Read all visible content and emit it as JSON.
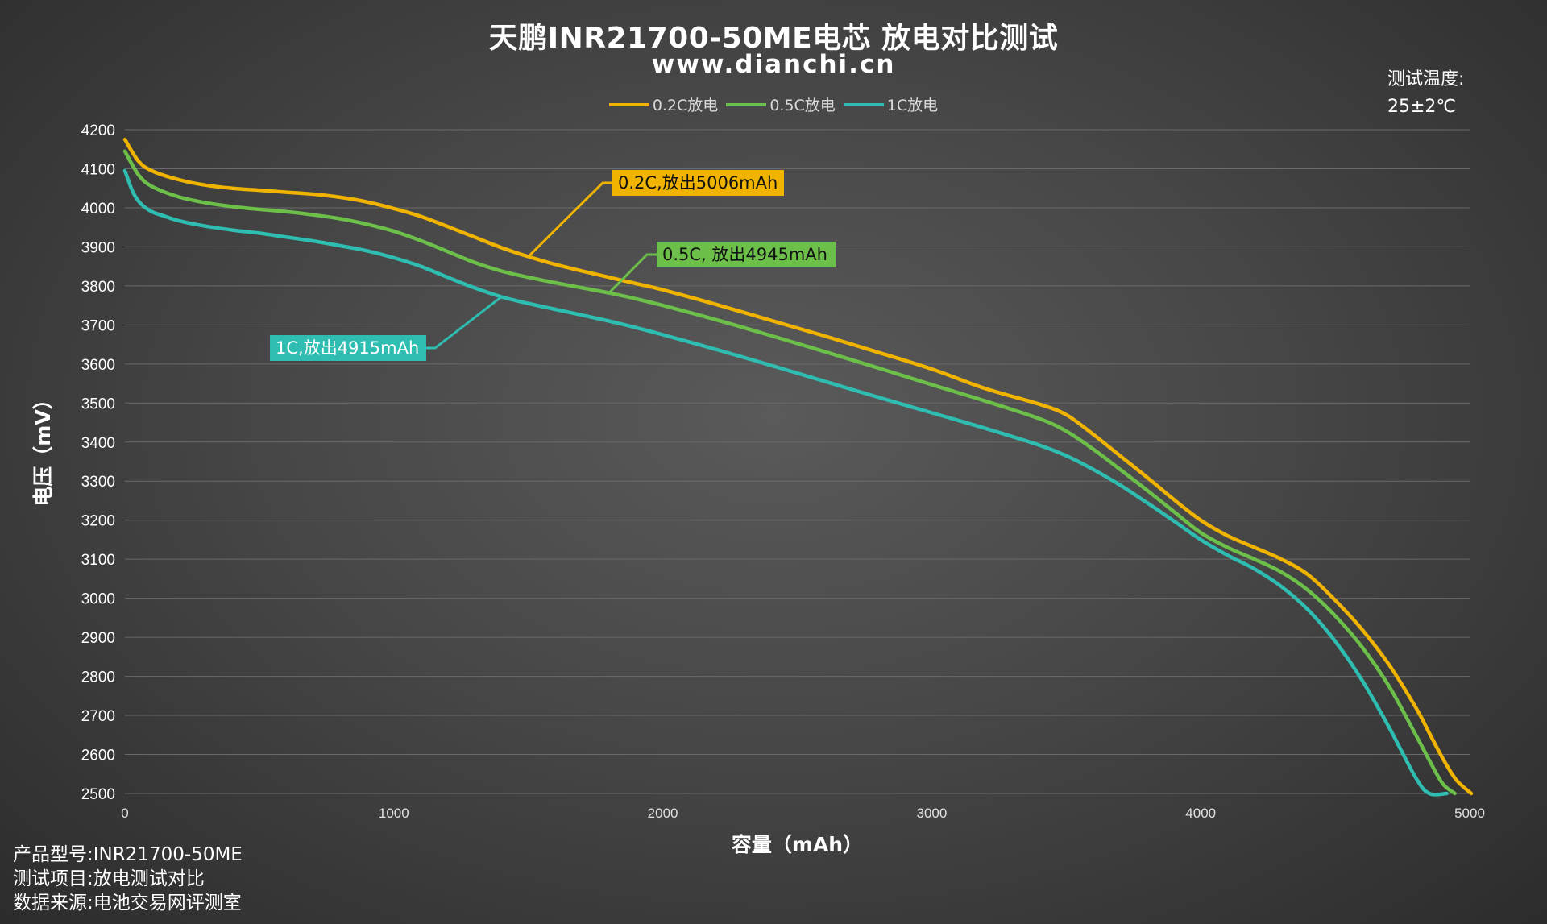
{
  "header": {
    "title": "天鹏INR21700-50ME电芯 放电对比测试",
    "subtitle": "www.dianchi.cn"
  },
  "test_temperature": {
    "label": "测试温度:",
    "value": "25±2℃"
  },
  "footer": {
    "rows": [
      {
        "label": "产品型号:",
        "value": "INR21700-50ME"
      },
      {
        "label": "测试项目:",
        "value": "放电测试对比"
      },
      {
        "label": "数据来源:",
        "value": "电池交易网评测室"
      }
    ]
  },
  "colors": {
    "s02": "#f0b400",
    "s05": "#6cc04a",
    "s1": "#2ebdb0",
    "grid": "#6a6a6a",
    "axis_text": "#ffffff"
  },
  "chart_data": {
    "type": "line",
    "xlabel": "容量（mAh）",
    "ylabel": "电压（mV）",
    "xlim": [
      0,
      5000
    ],
    "ylim": [
      2500,
      4200
    ],
    "xticks": [
      0,
      1000,
      2000,
      3000,
      4000,
      5000
    ],
    "yticks": [
      4200,
      4100,
      4000,
      3900,
      3800,
      3700,
      3600,
      3500,
      3400,
      3300,
      3200,
      3100,
      3000,
      2900,
      2800,
      2700,
      2600,
      2500
    ],
    "grid": true,
    "legend_position": "top-center",
    "series": [
      {
        "name": "0.2C放电",
        "color_key": "s02",
        "annotation": "0.2C,放出5006mAh",
        "x": [
          0,
          50,
          100,
          200,
          300,
          400,
          500,
          600,
          700,
          800,
          900,
          1000,
          1100,
          1200,
          1300,
          1400,
          1500,
          1600,
          1700,
          1800,
          1900,
          2000,
          2200,
          2400,
          2600,
          2800,
          3000,
          3200,
          3400,
          3500,
          3600,
          3700,
          3800,
          3900,
          4000,
          4100,
          4200,
          4300,
          4400,
          4500,
          4600,
          4700,
          4800,
          4850,
          4900,
          4950,
          5006
        ],
        "y": [
          4175,
          4120,
          4095,
          4072,
          4058,
          4050,
          4045,
          4040,
          4035,
          4027,
          4015,
          3998,
          3978,
          3952,
          3925,
          3898,
          3875,
          3855,
          3838,
          3822,
          3806,
          3790,
          3752,
          3712,
          3672,
          3630,
          3587,
          3537,
          3497,
          3470,
          3420,
          3365,
          3310,
          3253,
          3200,
          3160,
          3130,
          3100,
          3060,
          2995,
          2920,
          2830,
          2720,
          2655,
          2590,
          2535,
          2500
        ]
      },
      {
        "name": "0.5C放电",
        "color_key": "s05",
        "annotation": "0.5C, 放出4945mAh",
        "x": [
          0,
          50,
          100,
          200,
          300,
          400,
          500,
          600,
          700,
          800,
          900,
          1000,
          1100,
          1200,
          1300,
          1400,
          1500,
          1600,
          1700,
          1800,
          1900,
          2000,
          2200,
          2400,
          2600,
          2800,
          3000,
          3200,
          3400,
          3500,
          3600,
          3700,
          3800,
          3900,
          4000,
          4100,
          4200,
          4300,
          4400,
          4500,
          4600,
          4700,
          4800,
          4850,
          4900,
          4945
        ],
        "y": [
          4145,
          4085,
          4055,
          4028,
          4013,
          4003,
          3996,
          3990,
          3982,
          3972,
          3958,
          3940,
          3916,
          3888,
          3860,
          3838,
          3822,
          3808,
          3795,
          3782,
          3767,
          3750,
          3713,
          3673,
          3632,
          3590,
          3547,
          3505,
          3460,
          3428,
          3382,
          3330,
          3277,
          3222,
          3168,
          3130,
          3100,
          3067,
          3020,
          2955,
          2875,
          2775,
          2650,
          2585,
          2525,
          2500
        ]
      },
      {
        "name": "1C放电",
        "color_key": "s1",
        "annotation": "1C,放出4915mAh",
        "x": [
          0,
          30,
          60,
          100,
          150,
          200,
          300,
          400,
          500,
          600,
          700,
          800,
          900,
          1000,
          1100,
          1200,
          1300,
          1400,
          1500,
          1600,
          1700,
          1800,
          1900,
          2000,
          2200,
          2400,
          2600,
          2800,
          3000,
          3200,
          3400,
          3500,
          3600,
          3700,
          3800,
          3900,
          4000,
          4100,
          4200,
          4300,
          4400,
          4500,
          4600,
          4700,
          4800,
          4850,
          4915
        ],
        "y": [
          4095,
          4040,
          4010,
          3990,
          3978,
          3967,
          3953,
          3943,
          3935,
          3925,
          3915,
          3903,
          3890,
          3872,
          3850,
          3822,
          3795,
          3772,
          3755,
          3740,
          3725,
          3710,
          3693,
          3675,
          3637,
          3597,
          3556,
          3515,
          3475,
          3435,
          3392,
          3365,
          3330,
          3290,
          3245,
          3198,
          3150,
          3110,
          3075,
          3030,
          2970,
          2890,
          2790,
          2670,
          2540,
          2500,
          2500
        ]
      }
    ]
  }
}
